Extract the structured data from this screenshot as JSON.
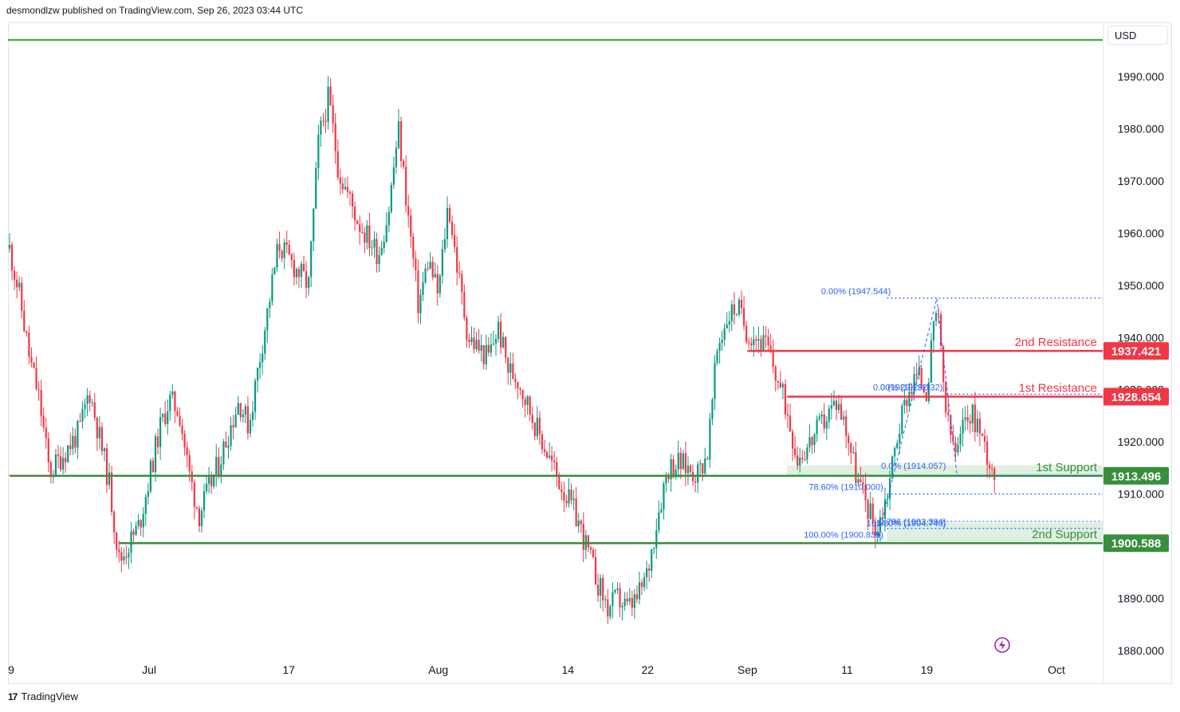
{
  "header": {
    "publisher_line": "desmondlzw published on TradingView.com, Sep 26, 2023 03:44 UTC"
  },
  "footer": {
    "logo_glyph": "17",
    "brand": "TradingView"
  },
  "currency": "USD",
  "colors": {
    "up": "#089981",
    "down": "#f23645",
    "resistance": "#f23645",
    "support": "#388e3c",
    "fib": "#2962ff",
    "top_line": "#4caf50"
  },
  "chart_data": {
    "type": "candlestick",
    "symbol_currency": "USD",
    "y_range": [
      1878,
      1998
    ],
    "y_ticks": [
      1880,
      1890,
      1900,
      1910,
      1920,
      1930,
      1940,
      1950,
      1960,
      1970,
      1980,
      1990
    ],
    "y_tick_labels": [
      "1880.000",
      "1890.000",
      "1900.000",
      "1910.000",
      "1920.000",
      "1930.000",
      "1940.000",
      "1950.000",
      "1960.000",
      "1970.000",
      "1980.000",
      "1990.000"
    ],
    "x_ticks": [
      {
        "label": "9",
        "date": "2023-06-19"
      },
      {
        "label": "Jul",
        "date": "2023-07-03"
      },
      {
        "label": "17",
        "date": "2023-07-17"
      },
      {
        "label": "Aug",
        "date": "2023-08-01"
      },
      {
        "label": "14",
        "date": "2023-08-14"
      },
      {
        "label": "22",
        "date": "2023-08-22"
      },
      {
        "label": "Sep",
        "date": "2023-09-01"
      },
      {
        "label": "11",
        "date": "2023-09-11"
      },
      {
        "label": "19",
        "date": "2023-09-19"
      },
      {
        "label": "Oct",
        "date": "2023-10-02"
      }
    ],
    "date_range": [
      "2023-06-19",
      "2023-10-02"
    ],
    "price_path": [
      [
        "2023-06-19",
        1957
      ],
      [
        "2023-06-20",
        1948
      ],
      [
        "2023-06-21",
        1936
      ],
      [
        "2023-06-22",
        1928
      ],
      [
        "2023-06-23",
        1914
      ],
      [
        "2023-06-26",
        1922
      ],
      [
        "2023-06-27",
        1930
      ],
      [
        "2023-06-28",
        1921
      ],
      [
        "2023-06-29",
        1912
      ],
      [
        "2023-06-30",
        1897
      ],
      [
        "2023-07-02",
        1904
      ],
      [
        "2023-07-04",
        1922
      ],
      [
        "2023-07-05",
        1928
      ],
      [
        "2023-07-06",
        1926
      ],
      [
        "2023-07-07",
        1914
      ],
      [
        "2023-07-08",
        1906
      ],
      [
        "2023-07-10",
        1916
      ],
      [
        "2023-07-12",
        1928
      ],
      [
        "2023-07-13",
        1923
      ],
      [
        "2023-07-14",
        1935
      ],
      [
        "2023-07-16",
        1958
      ],
      [
        "2023-07-17",
        1955
      ],
      [
        "2023-07-19",
        1950
      ],
      [
        "2023-07-20",
        1978
      ],
      [
        "2023-07-21",
        1986
      ],
      [
        "2023-07-22",
        1972
      ],
      [
        "2023-07-24",
        1962
      ],
      [
        "2023-07-26",
        1956
      ],
      [
        "2023-07-27",
        1964
      ],
      [
        "2023-07-28",
        1980
      ],
      [
        "2023-07-30",
        1946
      ],
      [
        "2023-07-31",
        1955
      ],
      [
        "2023-08-01",
        1948
      ],
      [
        "2023-08-02",
        1966
      ],
      [
        "2023-08-03",
        1952
      ],
      [
        "2023-08-04",
        1940
      ],
      [
        "2023-08-06",
        1936
      ],
      [
        "2023-08-07",
        1942
      ],
      [
        "2023-08-08",
        1934
      ],
      [
        "2023-08-09",
        1932
      ],
      [
        "2023-08-11",
        1922
      ],
      [
        "2023-08-13",
        1913
      ],
      [
        "2023-08-14",
        1909
      ],
      [
        "2023-08-15",
        1905
      ],
      [
        "2023-08-16",
        1899
      ],
      [
        "2023-08-17",
        1893
      ],
      [
        "2023-08-18",
        1888
      ],
      [
        "2023-08-19",
        1890
      ],
      [
        "2023-08-20",
        1888
      ],
      [
        "2023-08-21",
        1890
      ],
      [
        "2023-08-22",
        1895
      ],
      [
        "2023-08-23",
        1906
      ],
      [
        "2023-08-24",
        1915
      ],
      [
        "2023-08-25",
        1916
      ],
      [
        "2023-08-27",
        1914
      ],
      [
        "2023-08-28",
        1918
      ],
      [
        "2023-08-29",
        1938
      ],
      [
        "2023-08-30",
        1944
      ],
      [
        "2023-08-31",
        1946
      ],
      [
        "2023-09-01",
        1941
      ],
      [
        "2023-09-02",
        1940
      ],
      [
        "2023-09-03",
        1938
      ],
      [
        "2023-09-05",
        1926
      ],
      [
        "2023-09-06",
        1917
      ],
      [
        "2023-09-07",
        1919
      ],
      [
        "2023-09-08",
        1922
      ],
      [
        "2023-09-10",
        1928
      ],
      [
        "2023-09-11",
        1922
      ],
      [
        "2023-09-12",
        1913
      ],
      [
        "2023-09-13",
        1908
      ],
      [
        "2023-09-14",
        1903
      ],
      [
        "2023-09-15",
        1910
      ],
      [
        "2023-09-16",
        1921
      ],
      [
        "2023-09-17",
        1929
      ],
      [
        "2023-09-18",
        1933
      ],
      [
        "2023-09-19",
        1930
      ],
      [
        "2023-09-20",
        1946
      ],
      [
        "2023-09-21",
        1924
      ],
      [
        "2023-09-22",
        1917
      ],
      [
        "2023-09-23",
        1926
      ],
      [
        "2023-09-24",
        1924
      ],
      [
        "2023-09-25",
        1918
      ],
      [
        "2023-09-26",
        1913
      ]
    ],
    "levels": [
      {
        "label": "2nd Resistance",
        "value": "1937.421",
        "price": 1937.421,
        "kind": "resistance",
        "from": "2023-09-01"
      },
      {
        "label": "1st Resistance",
        "value": "1928.654",
        "price": 1928.654,
        "kind": "resistance",
        "from": "2023-09-05"
      },
      {
        "label": "1st Support",
        "value": "1913.496",
        "price": 1913.496,
        "kind": "support",
        "from": "2023-06-19"
      },
      {
        "label": "2nd Support",
        "value": "1900.588",
        "price": 1900.588,
        "kind": "support",
        "from": "2023-06-30"
      }
    ],
    "top_line_price": 1997,
    "fib_labels": [
      {
        "text": "0.00% (1947.544)",
        "price": 1947.544
      },
      {
        "text": "0 (1929.132)",
        "price": 1929.132
      },
      {
        "text": "0.00% (1929.132)",
        "price": 1929.132
      },
      {
        "text": "78.60% (1910.000)",
        "price": 1910.0
      },
      {
        "text": "0.0% (1914.057)",
        "price": 1914.057
      },
      {
        "text": "0.786 (1903.394)",
        "price": 1903.394
      },
      {
        "text": "161.80% (1904.740)",
        "price": 1904.74
      },
      {
        "text": "100.00% (1900.839)",
        "price": 1900.839
      }
    ]
  }
}
